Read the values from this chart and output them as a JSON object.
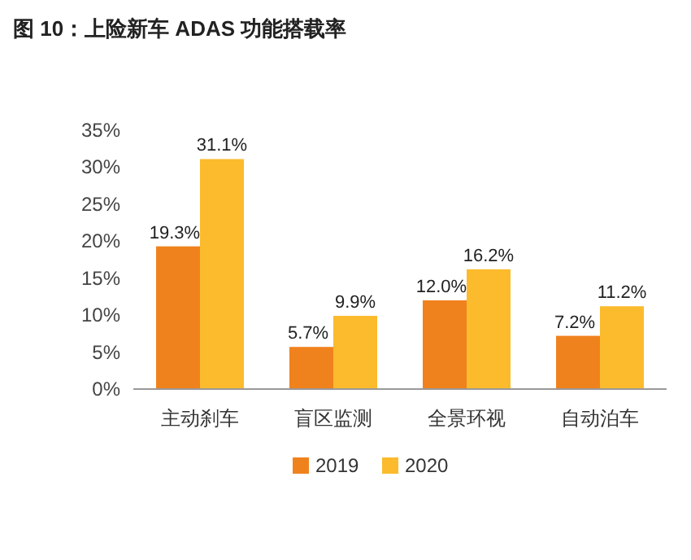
{
  "chart_data": {
    "type": "bar",
    "title": "图 10：上险新车 ADAS 功能搭载率",
    "categories": [
      "主动刹车",
      "盲区监测",
      "全景环视",
      "自动泊车"
    ],
    "series": [
      {
        "name": "2019",
        "color": "#f0821e",
        "values": [
          19.3,
          5.7,
          12.0,
          7.2
        ],
        "value_labels": [
          "19.3%",
          "5.7%",
          "12.0%",
          "7.2%"
        ]
      },
      {
        "name": "2020",
        "color": "#fbbb2d",
        "values": [
          31.1,
          9.9,
          16.2,
          11.2
        ],
        "value_labels": [
          "31.1%",
          "9.9%",
          "16.2%",
          "11.2%"
        ]
      }
    ],
    "ylim": [
      0,
      35
    ],
    "yticks": [
      {
        "value": 0,
        "label": "0%"
      },
      {
        "value": 5,
        "label": "5%"
      },
      {
        "value": 10,
        "label": "10%"
      },
      {
        "value": 15,
        "label": "15%"
      },
      {
        "value": 20,
        "label": "20%"
      },
      {
        "value": 25,
        "label": "25%"
      },
      {
        "value": 30,
        "label": "30%"
      },
      {
        "value": 35,
        "label": "35%"
      }
    ],
    "grid": false,
    "legend": "bottom"
  }
}
